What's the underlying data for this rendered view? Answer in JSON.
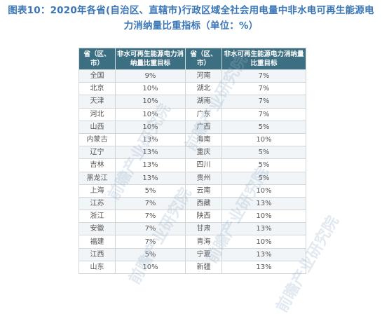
{
  "title": {
    "line1": "图表10：2020年各省(自治区、直辖市)行政区域全社会用电量中非水电可再生能源电",
    "line2": "力消纳量比重指标（单位：%）"
  },
  "table": {
    "headers": [
      "省（区、市）",
      "非水可再生能源电力消纳量比重目标",
      "省（区、市）",
      "非水可再生能源电力消纳量比重目标"
    ],
    "rows": [
      [
        "全国",
        "9%",
        "河南",
        "7%"
      ],
      [
        "北京",
        "10%",
        "湖北",
        "7%"
      ],
      [
        "天津",
        "10%",
        "湖南",
        "7%"
      ],
      [
        "河北",
        "10%",
        "广东",
        "7%"
      ],
      [
        "山西",
        "10%",
        "广西",
        "5%"
      ],
      [
        "内蒙古",
        "13%",
        "海南",
        "10%"
      ],
      [
        "辽宁",
        "13%",
        "重庆",
        "5%"
      ],
      [
        "吉林",
        "13%",
        "四川",
        "5%"
      ],
      [
        "黑龙江",
        "13%",
        "贵州",
        "5%"
      ],
      [
        "上海",
        "5%",
        "云南",
        "10%"
      ],
      [
        "江苏",
        "7%",
        "西藏",
        "13%"
      ],
      [
        "浙江",
        "7%",
        "陕西",
        "10%"
      ],
      [
        "安徽",
        "7%",
        "甘肃",
        "13%"
      ],
      [
        "福建",
        "7%",
        "青海",
        "10%"
      ],
      [
        "江西",
        "5%",
        "宁夏",
        "13%"
      ],
      [
        "山东",
        "10%",
        "新疆",
        "13%"
      ]
    ]
  },
  "watermark": "前瞻产业研究院"
}
